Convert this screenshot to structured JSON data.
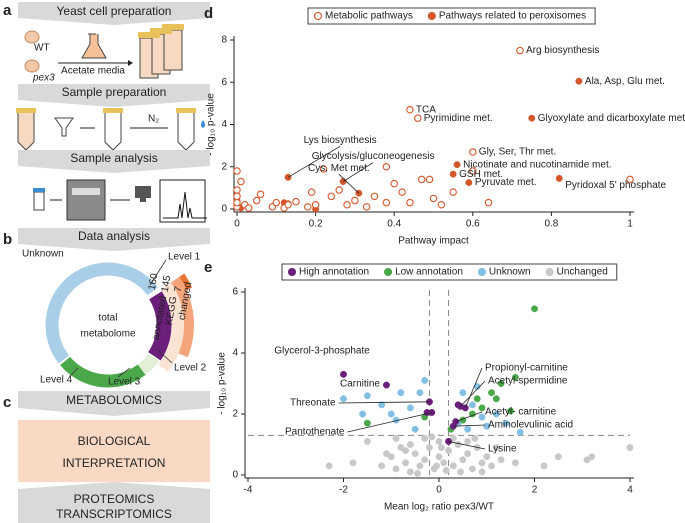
{
  "figure": {
    "a": {
      "letter": "a",
      "yeast_title": "Yeast cell preparation",
      "wt": "WT",
      "pex3": "pex3",
      "media": "Acetate media",
      "sample_title": "Sample preparation",
      "n2": "N₂",
      "analysis_title": "Sample analysis"
    },
    "b": {
      "letter": "b",
      "title": "Data analysis",
      "unknown": "Unknown",
      "center": [
        "total",
        "metabolome"
      ],
      "level1": "Level 1",
      "level2": "Level 2",
      "level3": "Level 3",
      "level4": "Level 4",
      "counts": [
        160,
        145,
        7
      ],
      "count_names": [
        "annotated",
        "KEGG",
        "changed"
      ]
    },
    "c": {
      "letter": "c",
      "metabolomics": "METABOLOMICS",
      "interpretation": [
        "BIOLOGICAL",
        "INTERPRETATION"
      ],
      "omics": [
        "PROTEOMICS",
        "TRANSCRIPTOMICS"
      ]
    }
  },
  "chart_data": [
    {
      "type": "scatter",
      "panel": "d",
      "xlabel": "Pathway impact",
      "ylabel": "- log₁₀ p-value",
      "xlim": [
        0,
        1
      ],
      "xticks": [
        0,
        0.2,
        0.4,
        0.6,
        0.8,
        1
      ],
      "ylim": [
        0,
        8
      ],
      "yticks": [
        0,
        2,
        4,
        6,
        8
      ],
      "series": [
        {
          "name": "Metabolic pathways",
          "color": "#d4572b",
          "filled": false,
          "x": [
            0.72,
            0.44,
            0.46,
            0.6,
            1.0,
            0,
            0,
            0,
            0,
            0.01,
            0.02,
            0.03,
            0.05,
            0.06,
            0.09,
            0.1,
            0.12,
            0.13,
            0.15,
            0.18,
            0.19,
            0.2,
            0.22,
            0.24,
            0.26,
            0.28,
            0.3,
            0.33,
            0.35,
            0.38,
            0.4,
            0.42,
            0.44,
            0.47,
            0.49,
            0.5,
            0.52,
            0.55,
            0.6,
            0.64,
            0.38,
            0
          ],
          "values": [
            7.5,
            4.7,
            4.3,
            2.7,
            1.4,
            0.1,
            0.3,
            0.6,
            0.9,
            1.3,
            0.2,
            0.05,
            0.4,
            0.7,
            0.1,
            0.3,
            0.05,
            0.2,
            0.35,
            0.1,
            0.8,
            0.2,
            1.9,
            0.6,
            0.9,
            0.2,
            0.4,
            0.1,
            0.6,
            0.3,
            1.2,
            0.8,
            0.3,
            1.4,
            1.4,
            0.5,
            0.2,
            0.8,
            1.8,
            0.3,
            2.0,
            1.8
          ],
          "labels": [
            "Arg biosynthesis",
            "TCA",
            "Pyrimidine met.",
            "Gly, Ser, Thr met.",
            null,
            null,
            null,
            null,
            null,
            null,
            null,
            null,
            null,
            null,
            null,
            null,
            null,
            null,
            null,
            null,
            null,
            null,
            null,
            null,
            null,
            null,
            null,
            null,
            null,
            null,
            null,
            null,
            null,
            null,
            null,
            null,
            null,
            null,
            null,
            null,
            null,
            null
          ]
        },
        {
          "name": "Pathways related to peroxisomes",
          "color": "#d4572b",
          "filled": true,
          "x": [
            0.87,
            0.75,
            0.56,
            0.55,
            0.59,
            0.82,
            0.13,
            0.27,
            0.31,
            0,
            0,
            0,
            0,
            0.01,
            0.12,
            0.13,
            0.2
          ],
          "values": [
            6.05,
            4.3,
            2.1,
            1.65,
            1.25,
            1.45,
            1.5,
            1.3,
            0.75,
            0.1,
            0.2,
            0.4,
            0.6,
            0.05,
            0.3,
            0.25,
            0
          ],
          "labels": [
            "Ala, Asp, Glu met.",
            "Glyoxylate and dicarboxylate met.",
            "Nicotinate and nucotinamide met.",
            "GSH met.",
            "Pyruvate met.",
            "Pyridoxal 5' phosphate",
            "Lys biosynthesis",
            "Glycolysis/gluconeogenesis",
            "Cys, Met met.",
            null,
            null,
            null,
            null,
            null,
            null,
            null,
            null
          ]
        }
      ]
    },
    {
      "type": "scatter",
      "panel": "e",
      "xlabel": "Mean log₂ ratio pex3/WT",
      "ylabel": "- log₁₀ p-value",
      "xlim": [
        -4,
        4
      ],
      "xticks": [
        -4,
        -2,
        0,
        2,
        4
      ],
      "ylim": [
        0,
        6
      ],
      "yticks": [
        0,
        2,
        4,
        6
      ],
      "threshold_x": [
        -0.2,
        0.2
      ],
      "threshold_y": 1.3,
      "series": [
        {
          "name": "High annotation",
          "color": "#6b1f7b",
          "filled": true,
          "x": [
            -2,
            -1.1,
            -0.2,
            -0.15,
            0.55,
            0.45,
            0.35,
            0.3,
            0.2,
            -0.25,
            0.4
          ],
          "values": [
            3.3,
            2.95,
            2.4,
            2.05,
            2.2,
            2.25,
            1.75,
            1.6,
            1.1,
            2.05,
            2.3
          ],
          "labels": [
            "Glycerol-3-phosphate",
            "Carnitine",
            "Threonate",
            "Pantothenate",
            "Propionyl-carnitine",
            "Acetyl-spermidine",
            "Acetyl- carnitine",
            "Aminolevulinic acid",
            "Lysine",
            null,
            null
          ]
        },
        {
          "name": "Low annotation",
          "color": "#4aa84a",
          "filled": true,
          "x": [
            2,
            1.6,
            1.1,
            1.2,
            0.9,
            0.7,
            1.5,
            -0.3,
            0.25,
            0.8,
            1.3,
            -1.5,
            0.5
          ],
          "values": [
            5.45,
            3.2,
            2.7,
            2.5,
            2.2,
            2.0,
            2.1,
            1.9,
            1.5,
            2.5,
            3.0,
            1.7,
            1.8
          ]
        },
        {
          "name": "Unknown",
          "color": "#82bfe3",
          "filled": true,
          "x": [
            -2,
            -1.5,
            -1.2,
            -1,
            -0.8,
            -0.6,
            -0.5,
            -0.4,
            -0.9,
            0.5,
            0.7,
            0.9,
            0.6,
            0.4,
            1.2,
            1.4,
            1.7,
            1.0,
            -0.3,
            -1.6,
            0.8
          ],
          "values": [
            2.5,
            2.6,
            2.3,
            2.0,
            2.7,
            2.2,
            1.5,
            2.7,
            1.8,
            2.7,
            2.3,
            1.9,
            1.5,
            1.7,
            2.0,
            1.7,
            1.4,
            1.6,
            3.1,
            2.0,
            2.9
          ]
        },
        {
          "name": "Unchanged",
          "color": "#c8c8c8",
          "filled": true,
          "x": [
            -1.2,
            -1,
            -0.9,
            -0.8,
            -0.7,
            -0.6,
            -0.5,
            -0.4,
            -0.3,
            -0.2,
            -0.1,
            0,
            0.1,
            0.2,
            0.3,
            0.4,
            0.5,
            0.6,
            0.7,
            0.8,
            0.9,
            1,
            1.1,
            1.3,
            1.6,
            2.2,
            2.5,
            3.1,
            3.2,
            4,
            -1.8,
            -2.3,
            -1.5,
            -0.9,
            -0.6,
            -0.3,
            0,
            0.3,
            0.6,
            0.9,
            -0.45,
            0.15,
            -0.15,
            0.45,
            -0.7,
            0.75,
            1.2,
            -1.1,
            0.05,
            -0.05
          ],
          "values": [
            0.3,
            0.6,
            0.2,
            0.9,
            0.4,
            1.0,
            0.7,
            0.3,
            0.5,
            0.9,
            0.2,
            0.6,
            0.4,
            0.8,
            0.3,
            1.0,
            0.5,
            0.7,
            0.2,
            0.9,
            0.4,
            0.6,
            0.3,
            0.5,
            0.4,
            0.3,
            0.6,
            0.5,
            0.6,
            0.9,
            0.4,
            0.3,
            1.1,
            1.2,
            0.1,
            1.2,
            1.1,
            1.2,
            1.1,
            0.1,
            0.05,
            0.15,
            1.25,
            0.1,
            0.8,
            1.2,
            0.9,
            0.7,
            0.9,
            0.3
          ]
        }
      ]
    }
  ]
}
